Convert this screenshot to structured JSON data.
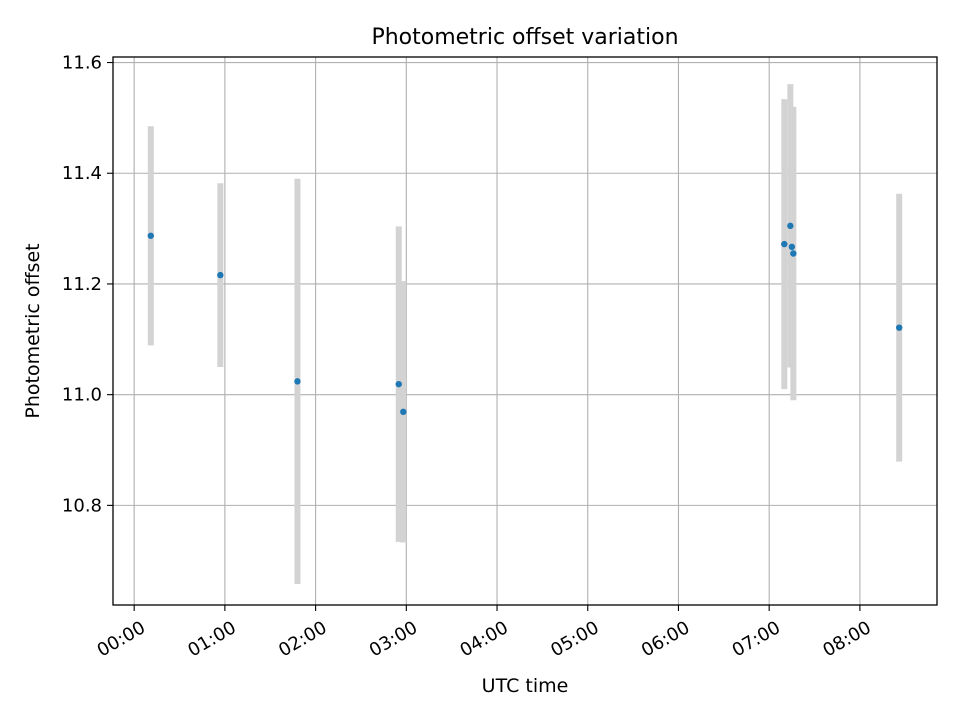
{
  "chart_data": {
    "type": "scatter",
    "title": "Photometric offset variation",
    "xlabel": "UTC time",
    "ylabel": "Photometric offset",
    "x_ticks": [
      "00:00",
      "01:00",
      "02:00",
      "03:00",
      "04:00",
      "05:00",
      "06:00",
      "07:00",
      "08:00"
    ],
    "y_ticks": [
      10.8,
      11.0,
      11.2,
      11.4,
      11.6
    ],
    "xlim": [
      "23:46",
      "08:51"
    ],
    "ylim": [
      10.62,
      11.61
    ],
    "grid": true,
    "series": [
      {
        "marker_color": "#1f77b4",
        "errorbar_color": "#d3d3d3",
        "points": [
          {
            "x": "00:11",
            "y": 11.287,
            "err": 0.198
          },
          {
            "x": "00:57",
            "y": 11.216,
            "err": 0.166
          },
          {
            "x": "01:48",
            "y": 11.024,
            "err": 0.366
          },
          {
            "x": "02:55",
            "y": 11.019,
            "err": 0.285
          },
          {
            "x": "02:58",
            "y": 10.969,
            "err": 0.236
          },
          {
            "x": "07:10",
            "y": 11.272,
            "err": 0.262
          },
          {
            "x": "07:14",
            "y": 11.305,
            "err": 0.256
          },
          {
            "x": "07:15",
            "y": 11.267,
            "err": 0.197
          },
          {
            "x": "07:16",
            "y": 11.255,
            "err": 0.265
          },
          {
            "x": "08:26",
            "y": 11.121,
            "err": 0.242
          }
        ]
      }
    ]
  }
}
